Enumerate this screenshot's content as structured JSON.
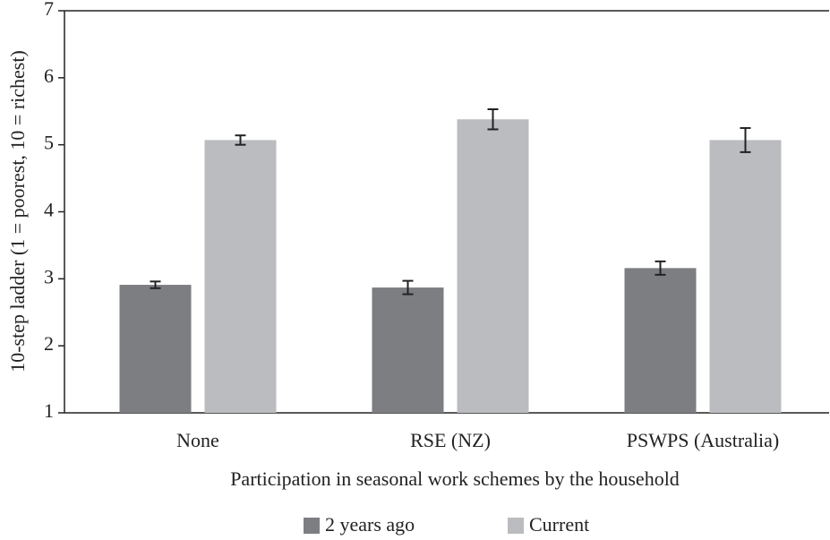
{
  "chart_data": {
    "type": "bar",
    "xlabel": "Participation in seasonal work schemes by the household",
    "ylabel": "10-step ladder (1 = poorest, 10 = richest)",
    "categories": [
      "None",
      "RSE (NZ)",
      "PSWPS (Australia)"
    ],
    "series": [
      {
        "name": "2 years ago",
        "color": "#7d7e82",
        "values": [
          2.91,
          2.87,
          3.16
        ],
        "errors": [
          0.05,
          0.1,
          0.1
        ]
      },
      {
        "name": "Current",
        "color": "#bbbcbf",
        "values": [
          5.07,
          5.38,
          5.07
        ],
        "errors": [
          0.07,
          0.15,
          0.18
        ]
      }
    ],
    "ylim": [
      1,
      7
    ],
    "yticks": [
      1,
      2,
      3,
      4,
      5,
      6,
      7
    ],
    "grid": false
  }
}
